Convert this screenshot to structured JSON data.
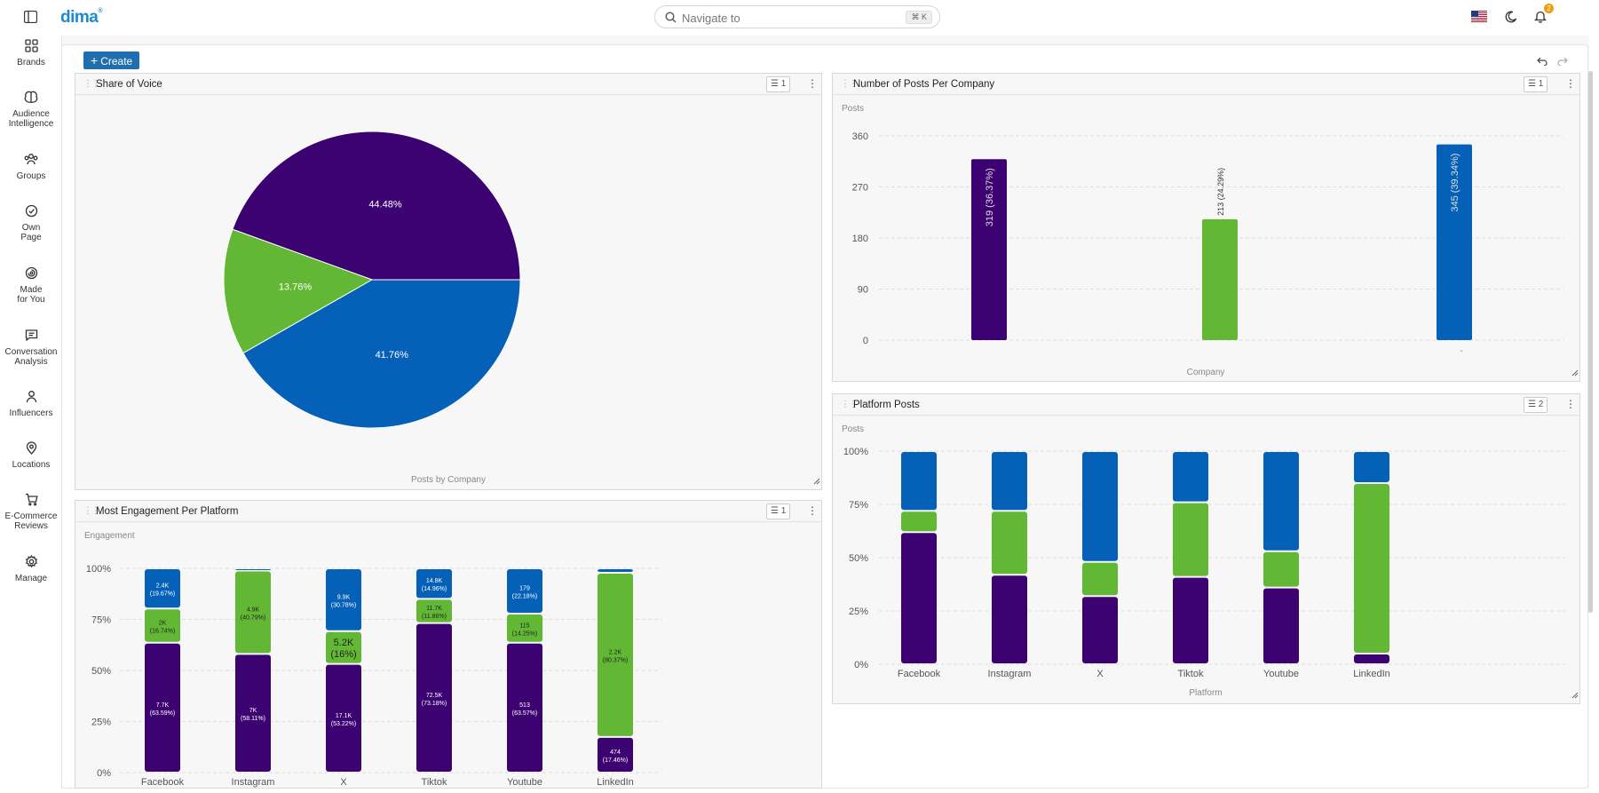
{
  "app": {
    "logo": "dima",
    "logo_mark": "®"
  },
  "search": {
    "placeholder": "Navigate to",
    "shortcut": "⌘ K"
  },
  "notifications": {
    "count": "2"
  },
  "sidebar": {
    "items": [
      {
        "label": "Brands",
        "icon": "grid-icon"
      },
      {
        "label": "Audience Intelligence",
        "icon": "brain-icon"
      },
      {
        "label": "Groups",
        "icon": "people-icon"
      },
      {
        "label": "Own Page",
        "icon": "check-circle-icon"
      },
      {
        "label": "Made for You",
        "icon": "spiral-icon"
      },
      {
        "label": "Conversation Analysis",
        "icon": "chat-icon"
      },
      {
        "label": "Influencers",
        "icon": "person-icon"
      },
      {
        "label": "Locations",
        "icon": "pin-icon"
      },
      {
        "label": "E-Commerce Reviews",
        "icon": "cart-icon"
      },
      {
        "label": "Manage",
        "icon": "gear-icon"
      }
    ]
  },
  "toolbar": {
    "create_label": "Create"
  },
  "widgets": {
    "sov": {
      "title": "Share of Voice",
      "filter_count": "1",
      "caption": "Posts by Company"
    },
    "posts_company": {
      "title": "Number of Posts Per Company",
      "filter_count": "1"
    },
    "engagement": {
      "title": "Most Engagement Per Platform",
      "filter_count": "1"
    },
    "platform_posts": {
      "title": "Platform Posts",
      "filter_count": "2"
    }
  },
  "colors": {
    "purple": "#3d0272",
    "green": "#62b834",
    "blue": "#0561b8"
  },
  "chart_data": [
    {
      "type": "pie",
      "caption": "Posts by Company",
      "slices": [
        {
          "label": "44.48%",
          "value": 44.48,
          "color": "#3d0272"
        },
        {
          "label": "41.76%",
          "value": 41.76,
          "color": "#0561b8"
        },
        {
          "label": "13.76%",
          "value": 13.76,
          "color": "#62b834"
        }
      ]
    },
    {
      "type": "bar",
      "ylabel": "Posts",
      "xlabel": "Company",
      "ylim": [
        0,
        360
      ],
      "yticks": [
        "0",
        "90",
        "180",
        "270",
        "360"
      ],
      "bars": [
        {
          "value": 319,
          "label": "319 (36.37%)",
          "color": "#3d0272"
        },
        {
          "value": 213,
          "label": "213 (24.29%)",
          "color": "#62b834"
        },
        {
          "value": 345,
          "label": "345 (39.34%)",
          "color": "#0561b8"
        }
      ],
      "x_tick_note": "-"
    },
    {
      "type": "bar",
      "stacked": true,
      "ylabel": "Engagement",
      "yticks": [
        "0%",
        "25%",
        "50%",
        "75%",
        "100%"
      ],
      "categories": [
        "Facebook",
        "Instagram",
        "X",
        "Tiktok",
        "Youtube",
        "LinkedIn"
      ],
      "series": [
        {
          "color": "#3d0272",
          "values": [
            63.59,
            58.11,
            53.22,
            73.18,
            63.57,
            17.46
          ],
          "labels": [
            "7.7K (63.59%)",
            "7K (58.11%)",
            "17.1K (53.22%)",
            "72.5K (73.18%)",
            "513 (63.57%)",
            "474 (17.46%)"
          ]
        },
        {
          "color": "#62b834",
          "values": [
            16.74,
            40.79,
            16.0,
            11.86,
            14.25,
            80.37
          ],
          "labels": [
            "2K (16.74%)",
            "4.9K (40.79%)",
            "5.2K (16%)",
            "11.7K (11.86%)",
            "115 (14.25%)",
            "2.2K (80.37%)"
          ]
        },
        {
          "color": "#0561b8",
          "values": [
            19.67,
            1.1,
            30.78,
            14.96,
            22.18,
            2.17
          ],
          "labels": [
            "2.4K (19.67%)",
            "",
            "9.9K (30.78%)",
            "14.8K (14.96%)",
            "179 (22.18%)",
            ""
          ]
        }
      ]
    },
    {
      "type": "bar",
      "stacked": true,
      "ylabel": "Posts",
      "xlabel": "Platform",
      "yticks": [
        "0%",
        "25%",
        "50%",
        "75%",
        "100%"
      ],
      "categories": [
        "Facebook",
        "Instagram",
        "X",
        "Tiktok",
        "Youtube",
        "LinkedIn"
      ],
      "series": [
        {
          "color": "#3d0272",
          "values": [
            62,
            42,
            32,
            41,
            36,
            5
          ]
        },
        {
          "color": "#62b834",
          "values": [
            10,
            30,
            16,
            35,
            17,
            80
          ]
        },
        {
          "color": "#0561b8",
          "values": [
            28,
            28,
            52,
            24,
            47,
            15
          ]
        }
      ]
    }
  ]
}
